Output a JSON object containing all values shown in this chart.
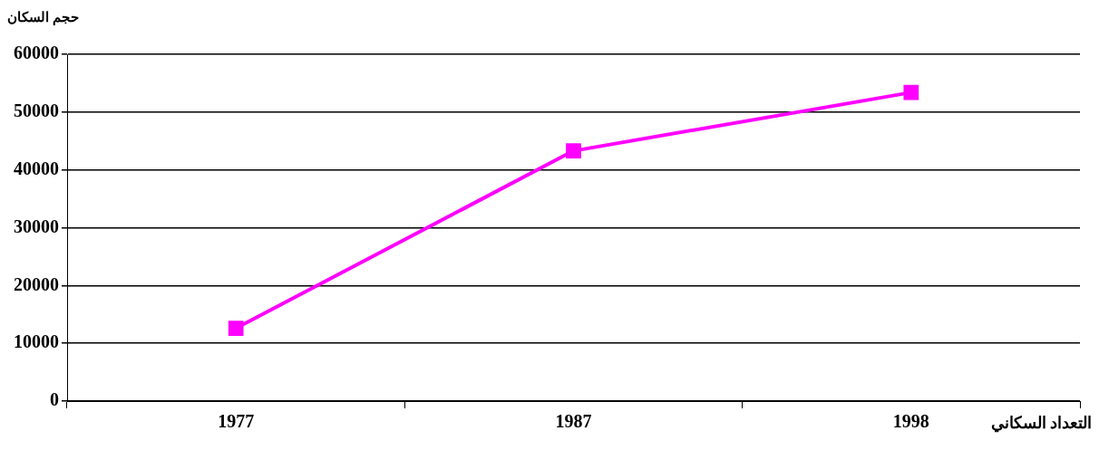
{
  "chart_data": {
    "type": "line",
    "ylabel": "حجم السكان",
    "xlabel": "التعداد السكاني",
    "categories": [
      "1977",
      "1987",
      "1998"
    ],
    "series": [
      {
        "color": "#ff00ff",
        "values": [
          12600,
          43300,
          53400
        ]
      }
    ],
    "ylim": [
      0,
      60000
    ],
    "yticks": [
      0,
      10000,
      20000,
      30000,
      40000,
      50000,
      60000
    ],
    "grid": "y",
    "legend": false,
    "marker": "square",
    "line_style": "solid"
  }
}
